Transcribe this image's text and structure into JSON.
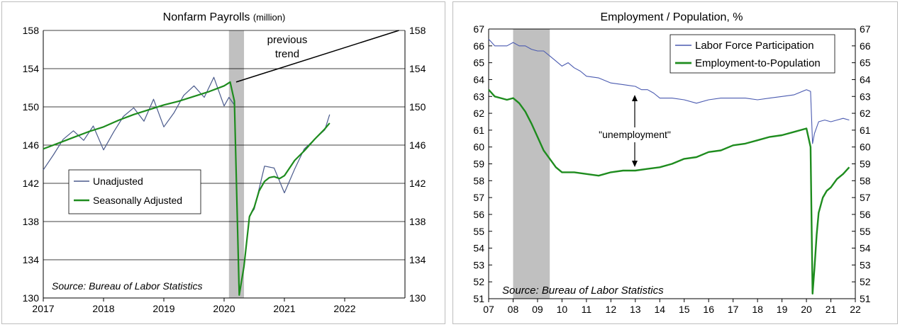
{
  "chart_data": [
    {
      "type": "line",
      "title": "Nonfarm Payrolls",
      "title_unit": "(million)",
      "xlabel": "",
      "ylabel": "",
      "x_ticks": [
        "2017",
        "2018",
        "2019",
        "2020",
        "2021",
        "2022"
      ],
      "y_ticks": [
        "130",
        "134",
        "138",
        "142",
        "146",
        "150",
        "154",
        "158"
      ],
      "xlim": [
        2017.0,
        2023.0
      ],
      "ylim": [
        130,
        158
      ],
      "grid": "horizontal",
      "legend_position": "lower-left",
      "recession_band": [
        2020.08,
        2020.33
      ],
      "source": "Source: Bureau of Labor Statistics",
      "annotation": {
        "line1": "previous",
        "line2": "trend"
      },
      "trend": {
        "name": "previous trend",
        "x": [
          2020.2,
          2022.9
        ],
        "y": [
          152.6,
          158.0
        ]
      },
      "series": [
        {
          "name": "Unadjusted",
          "color": "#4a5a8c",
          "x": [
            2017.0,
            2017.17,
            2017.33,
            2017.5,
            2017.67,
            2017.83,
            2018.0,
            2018.17,
            2018.33,
            2018.5,
            2018.67,
            2018.83,
            2019.0,
            2019.17,
            2019.33,
            2019.5,
            2019.67,
            2019.83,
            2020.0,
            2020.08,
            2020.17,
            2020.25,
            2020.33,
            2020.42,
            2020.5,
            2020.67,
            2020.83,
            2021.0,
            2021.17,
            2021.33,
            2021.5,
            2021.67,
            2021.75
          ],
          "values": [
            143.4,
            145.0,
            146.6,
            147.5,
            146.5,
            148.0,
            145.5,
            147.4,
            149.0,
            149.9,
            148.5,
            150.8,
            147.9,
            149.4,
            151.2,
            152.2,
            151.0,
            153.1,
            150.1,
            151.0,
            150.2,
            130.4,
            133.3,
            138.6,
            139.3,
            143.8,
            143.6,
            141.0,
            143.5,
            145.6,
            146.6,
            147.6,
            149.2
          ]
        },
        {
          "name": "Seasonally Adjusted",
          "color": "#1e8c1e",
          "x": [
            2017.0,
            2017.25,
            2017.5,
            2017.75,
            2018.0,
            2018.25,
            2018.5,
            2018.75,
            2019.0,
            2019.25,
            2019.5,
            2019.75,
            2020.0,
            2020.1,
            2020.17,
            2020.25,
            2020.33,
            2020.42,
            2020.5,
            2020.58,
            2020.67,
            2020.75,
            2020.83,
            2020.92,
            2021.0,
            2021.17,
            2021.33,
            2021.5,
            2021.67,
            2021.75
          ],
          "values": [
            145.6,
            146.2,
            146.8,
            147.4,
            147.9,
            148.6,
            149.2,
            149.7,
            150.2,
            150.6,
            151.1,
            151.6,
            152.2,
            152.6,
            150.6,
            130.3,
            133.3,
            138.5,
            139.5,
            141.2,
            142.2,
            142.6,
            142.7,
            142.5,
            142.8,
            144.4,
            145.4,
            146.6,
            147.7,
            148.3
          ]
        }
      ]
    },
    {
      "type": "line",
      "title": "Employment / Population, %",
      "xlabel": "",
      "ylabel": "",
      "x_ticks": [
        "07",
        "08",
        "09",
        "10",
        "11",
        "12",
        "13",
        "14",
        "15",
        "16",
        "17",
        "18",
        "19",
        "20",
        "21",
        "22"
      ],
      "y_ticks": [
        "51",
        "52",
        "53",
        "54",
        "55",
        "56",
        "57",
        "58",
        "59",
        "60",
        "61",
        "62",
        "63",
        "64",
        "65",
        "66",
        "67"
      ],
      "xlim": [
        2007.0,
        2022.0
      ],
      "ylim": [
        51,
        67
      ],
      "grid": "off",
      "legend_position": "top-right",
      "recession_band": [
        2008.0,
        2009.5
      ],
      "source": "Source: Bureau of Labor Statistics",
      "annotation": {
        "text": "\"unemployment\""
      },
      "series": [
        {
          "name": "Labor Force Participation",
          "color": "#4a5ab0",
          "x": [
            2007.0,
            2007.25,
            2007.5,
            2007.75,
            2008.0,
            2008.25,
            2008.5,
            2008.75,
            2009.0,
            2009.25,
            2009.5,
            2009.75,
            2010.0,
            2010.25,
            2010.5,
            2010.75,
            2011.0,
            2011.5,
            2012.0,
            2012.5,
            2013.0,
            2013.25,
            2013.5,
            2013.75,
            2014.0,
            2014.5,
            2015.0,
            2015.5,
            2016.0,
            2016.5,
            2017.0,
            2017.5,
            2018.0,
            2018.5,
            2019.0,
            2019.5,
            2020.0,
            2020.17,
            2020.25,
            2020.33,
            2020.5,
            2020.75,
            2021.0,
            2021.25,
            2021.5,
            2021.75
          ],
          "values": [
            66.4,
            66.0,
            66.0,
            66.0,
            66.2,
            66.0,
            66.0,
            65.8,
            65.7,
            65.7,
            65.4,
            65.1,
            64.8,
            65.0,
            64.7,
            64.5,
            64.2,
            64.1,
            63.8,
            63.7,
            63.6,
            63.4,
            63.4,
            63.2,
            62.9,
            62.9,
            62.8,
            62.6,
            62.8,
            62.9,
            62.9,
            62.9,
            62.8,
            62.9,
            63.0,
            63.1,
            63.4,
            63.3,
            60.2,
            60.8,
            61.5,
            61.6,
            61.5,
            61.6,
            61.7,
            61.6
          ]
        },
        {
          "name": "Employment-to-Population",
          "color": "#1e8c1e",
          "x": [
            2007.0,
            2007.25,
            2007.5,
            2007.75,
            2008.0,
            2008.25,
            2008.5,
            2008.75,
            2009.0,
            2009.25,
            2009.5,
            2009.75,
            2010.0,
            2010.5,
            2011.0,
            2011.5,
            2012.0,
            2012.5,
            2013.0,
            2013.5,
            2014.0,
            2014.5,
            2015.0,
            2015.5,
            2016.0,
            2016.5,
            2017.0,
            2017.5,
            2018.0,
            2018.5,
            2019.0,
            2019.5,
            2020.0,
            2020.17,
            2020.25,
            2020.33,
            2020.42,
            2020.5,
            2020.67,
            2020.83,
            2021.0,
            2021.25,
            2021.5,
            2021.75
          ],
          "values": [
            63.4,
            63.0,
            62.9,
            62.8,
            62.9,
            62.6,
            62.1,
            61.4,
            60.6,
            59.8,
            59.3,
            58.8,
            58.5,
            58.5,
            58.4,
            58.3,
            58.5,
            58.6,
            58.6,
            58.7,
            58.8,
            59.0,
            59.3,
            59.4,
            59.7,
            59.8,
            60.1,
            60.2,
            60.4,
            60.6,
            60.7,
            60.9,
            61.1,
            60.0,
            51.3,
            52.8,
            54.8,
            56.1,
            57.0,
            57.4,
            57.6,
            58.1,
            58.4,
            58.8
          ]
        }
      ]
    }
  ]
}
